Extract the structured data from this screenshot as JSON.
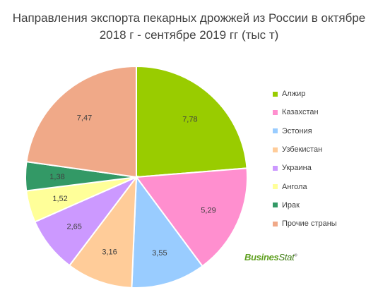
{
  "title_line1": "Направления экспорта пекарных дрожжей из России в октябре",
  "title_line2": "2018 г - сентябре 2019 гг (тыс т)",
  "logo": {
    "text_main": "Busines",
    "text_stat": "Stat",
    "mark": "®"
  },
  "chart_data": {
    "type": "pie",
    "title": "Направления экспорта пекарных дрожжей из России в октябре 2018 г - сентябре 2019 гг (тыс т)",
    "categories": [
      "Алжир",
      "Казахстан",
      "Эстония",
      "Узбекистан",
      "Украина",
      "Ангола",
      "Ирак",
      "Прочие страны"
    ],
    "values": [
      7.78,
      5.29,
      3.55,
      3.16,
      2.65,
      1.52,
      1.38,
      7.47
    ],
    "labels": [
      "7,78",
      "5,29",
      "3,55",
      "3,16",
      "2,65",
      "1,52",
      "1,38",
      "7,47"
    ],
    "colors": [
      "#99cc00",
      "#ff8fcf",
      "#99ccff",
      "#ffcc99",
      "#cc99ff",
      "#ffff99",
      "#339966",
      "#f0a988"
    ],
    "start": "12 o'clock, clockwise",
    "legend_position": "right"
  }
}
